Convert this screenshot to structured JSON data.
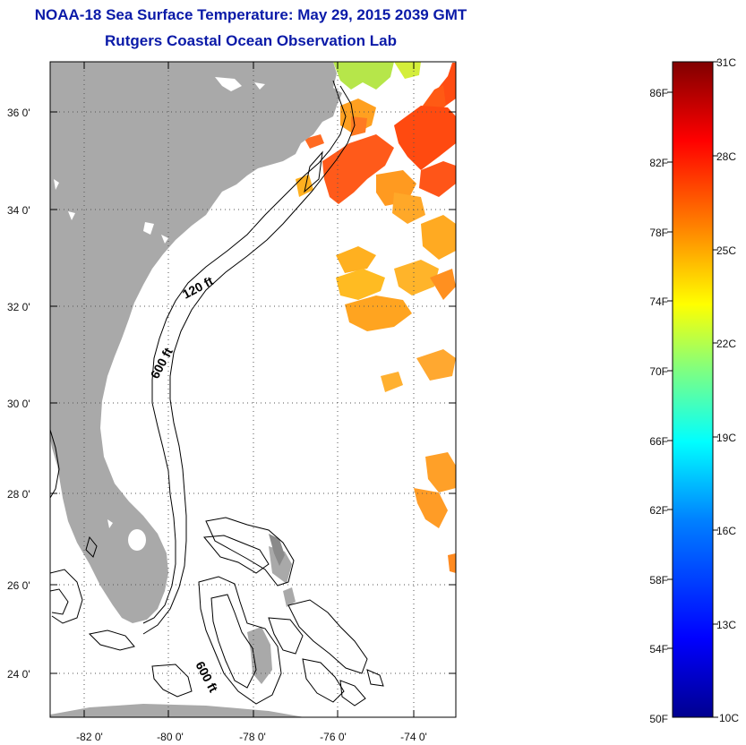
{
  "title": "NOAA-18 Sea Surface Temperature:  May 29, 2015 2039 GMT",
  "subtitle": "Rutgers Coastal Ocean Observation Lab",
  "map": {
    "lat_labels": [
      "36 0'",
      "34 0'",
      "32 0'",
      "30 0'",
      "28 0'",
      "26 0'",
      "24 0'"
    ],
    "lon_labels": [
      "-82 0'",
      "-80 0'",
      "-78 0'",
      "-76 0'",
      "-74 0'"
    ],
    "contour_labels": [
      "120 ft",
      "600 ft",
      "600 ft"
    ],
    "colors": {
      "land": "#a9a9a9",
      "ocean": "#ffffff",
      "grid": "#555555"
    }
  },
  "colorbar": {
    "fahrenheit_labels": [
      "86F",
      "82F",
      "78F",
      "74F",
      "70F",
      "66F",
      "62F",
      "58F",
      "54F",
      "50F"
    ],
    "celsius_labels": [
      "31C",
      "28C",
      "25C",
      "22C",
      "19C",
      "16C",
      "13C",
      "10C"
    ],
    "range_c": [
      10,
      31
    ],
    "colormap": [
      "#00008f",
      "#0000ff",
      "#0080ff",
      "#00ffff",
      "#80ff80",
      "#ffff00",
      "#ff8000",
      "#ff0000",
      "#800000"
    ]
  }
}
